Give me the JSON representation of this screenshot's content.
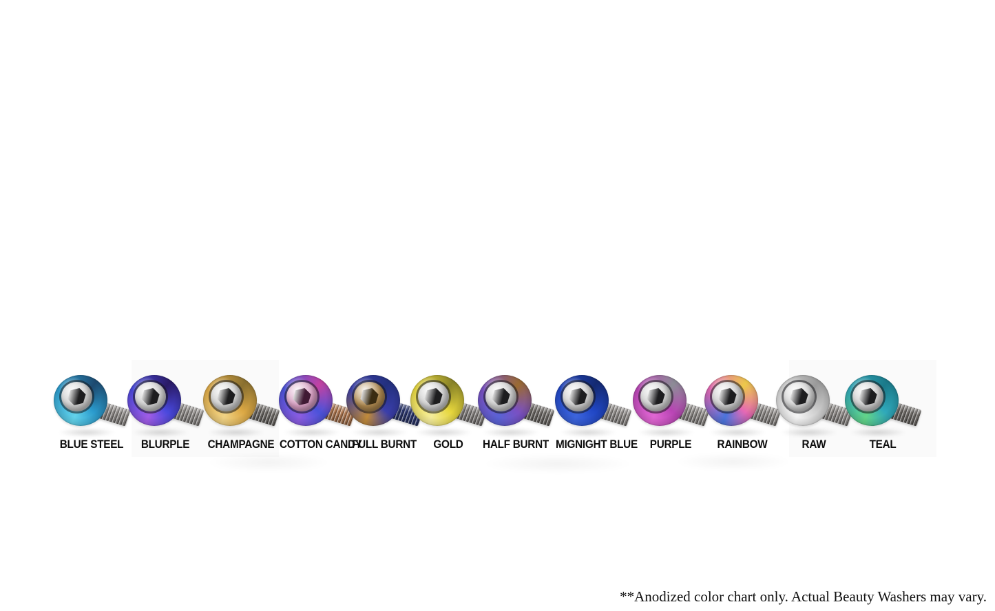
{
  "page": {
    "background_color": "#ffffff",
    "description_label": "anodized-titanium-bolt-color-chart"
  },
  "footnote": {
    "text": "**Anodized color chart only. Actual Beauty Washers may vary."
  },
  "bolts": [
    {
      "label": "BLUE STEEL",
      "head": [
        "#62d2ea",
        "#2a9acc",
        "#1d4a70"
      ],
      "socket": "#cfcfcf",
      "hex": "#1d1d1f",
      "shaft": "#8f8b88"
    },
    {
      "label": "BLURPLE",
      "head": [
        "#a05ce6",
        "#4848dc",
        "#2a1a66"
      ],
      "socket": "#cfcfcf",
      "hex": "#1d1d1f",
      "shaft": "#8f8b88"
    },
    {
      "label": "CHAMPAGNE",
      "head": [
        "#f0d284",
        "#dca844",
        "#8a7030"
      ],
      "socket": "#cfcfcf",
      "hex": "#1d1d1f",
      "shaft": "#6e6a66"
    },
    {
      "label": "COTTON CANDY",
      "head": [
        "#8a5ce0",
        "#4a52da",
        "#c242a2"
      ],
      "socket": "#d79ec2",
      "hex": "#401a34",
      "shaft": "#b07850"
    },
    {
      "label": "FULL BURNT",
      "head": [
        "#c08a3a",
        "#3a3eaa",
        "#23307e"
      ],
      "socket": "#b08a50",
      "hex": "#3a2c12",
      "shaft": "#2c3870"
    },
    {
      "label": "GOLD",
      "head": [
        "#f4ec9a",
        "#e6d63c",
        "#8a8428"
      ],
      "socket": "#cfcfcf",
      "hex": "#1d1d1f",
      "shaft": "#84807e"
    },
    {
      "label": "HALF BURNT",
      "head": [
        "#5a62d4",
        "#7a50c2",
        "#9a6a32"
      ],
      "socket": "#cfcfcf",
      "hex": "#1d1d1f",
      "shaft": "#6e6a66"
    },
    {
      "label": "MIGNIGHT BLUE",
      "head": [
        "#3c64dc",
        "#2046c4",
        "#142a72"
      ],
      "socket": "#cfcfcf",
      "hex": "#1d1d1f",
      "shaft": "#8f8b88"
    },
    {
      "label": "PURPLE",
      "head": [
        "#e066d2",
        "#b844b4",
        "#8c8c96"
      ],
      "socket": "#cfcfcf",
      "hex": "#1d1d1f",
      "shaft": "#8f8b88"
    },
    {
      "label": "RAINBOW",
      "head": [
        "#4a74dc",
        "#e668b4",
        "#ecc84a"
      ],
      "socket": "#cfcfcf",
      "hex": "#1d1d1f",
      "shaft": "#8f8b88"
    },
    {
      "label": "RAW",
      "head": [
        "#f4f4f4",
        "#cfcfcf",
        "#9a9a9a"
      ],
      "socket": "#d6d6d6",
      "hex": "#1d1d1f",
      "shaft": "#8f8b88"
    },
    {
      "label": "TEAL",
      "head": [
        "#62d488",
        "#2fa8ba",
        "#1b7a8a"
      ],
      "socket": "#cfcfcf",
      "hex": "#1d1d1f",
      "shaft": "#6e6a66"
    }
  ]
}
